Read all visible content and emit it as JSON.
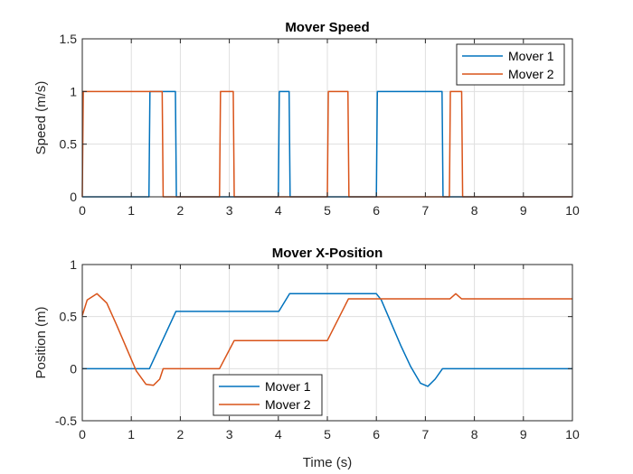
{
  "chart_data": [
    {
      "type": "line",
      "title": "Mover Speed",
      "xlabel": "",
      "ylabel": "Speed (m/s)",
      "xlim": [
        0,
        10
      ],
      "ylim": [
        0,
        1.5
      ],
      "xticks": [
        0,
        1,
        2,
        3,
        4,
        5,
        6,
        7,
        8,
        9,
        10
      ],
      "yticks": [
        0,
        0.5,
        1,
        1.5
      ],
      "ytick_labels": [
        "0",
        "0.5",
        "1",
        "1.5"
      ],
      "grid": true,
      "legend_location": "top-right",
      "series": [
        {
          "name": "Mover 1",
          "color": "#0072BD",
          "x": [
            0,
            1.36,
            1.38,
            1.9,
            1.92,
            4.0,
            4.02,
            4.22,
            4.24,
            6.0,
            6.02,
            7.34,
            7.36,
            10
          ],
          "y": [
            0,
            0,
            1,
            1,
            0,
            0,
            1,
            1,
            0,
            0,
            1,
            1,
            0,
            0
          ]
        },
        {
          "name": "Mover 2",
          "color": "#D95319",
          "x": [
            0,
            0.02,
            1.63,
            1.65,
            2.8,
            2.82,
            3.08,
            3.1,
            5.0,
            5.02,
            5.42,
            5.44,
            7.49,
            7.51,
            7.74,
            7.76,
            10
          ],
          "y": [
            0,
            1,
            1,
            0,
            0,
            1,
            1,
            0,
            0,
            1,
            1,
            0,
            0,
            1,
            1,
            0,
            0
          ]
        }
      ]
    },
    {
      "type": "line",
      "title": "Mover X-Position",
      "xlabel": "Time (s)",
      "ylabel": "Position (m)",
      "xlim": [
        0,
        10
      ],
      "ylim": [
        -0.5,
        1
      ],
      "xticks": [
        0,
        1,
        2,
        3,
        4,
        5,
        6,
        7,
        8,
        9,
        10
      ],
      "yticks": [
        -0.5,
        0,
        0.5,
        1
      ],
      "ytick_labels": [
        "-0.5",
        "0",
        "0.5",
        "1"
      ],
      "grid": true,
      "legend_location": "bottom-center",
      "series": [
        {
          "name": "Mover 1",
          "color": "#0072BD",
          "x": [
            0,
            1.37,
            1.91,
            4.01,
            4.23,
            6.0,
            6.1,
            6.3,
            6.5,
            6.7,
            6.9,
            7.05,
            7.2,
            7.35,
            10
          ],
          "y": [
            0,
            0,
            0.55,
            0.55,
            0.72,
            0.72,
            0.66,
            0.44,
            0.22,
            0.02,
            -0.14,
            -0.17,
            -0.1,
            0,
            0
          ]
        },
        {
          "name": "Mover 2",
          "color": "#D95319",
          "x": [
            0,
            0.1,
            0.3,
            0.5,
            0.7,
            0.9,
            1.1,
            1.3,
            1.45,
            1.58,
            1.65,
            2.8,
            3.1,
            5.0,
            5.43,
            7.5,
            7.62,
            7.74,
            10
          ],
          "y": [
            0.51,
            0.66,
            0.72,
            0.63,
            0.42,
            0.2,
            -0.02,
            -0.15,
            -0.16,
            -0.1,
            0,
            0,
            0.27,
            0.27,
            0.67,
            0.67,
            0.72,
            0.67,
            0.67
          ]
        }
      ]
    }
  ]
}
